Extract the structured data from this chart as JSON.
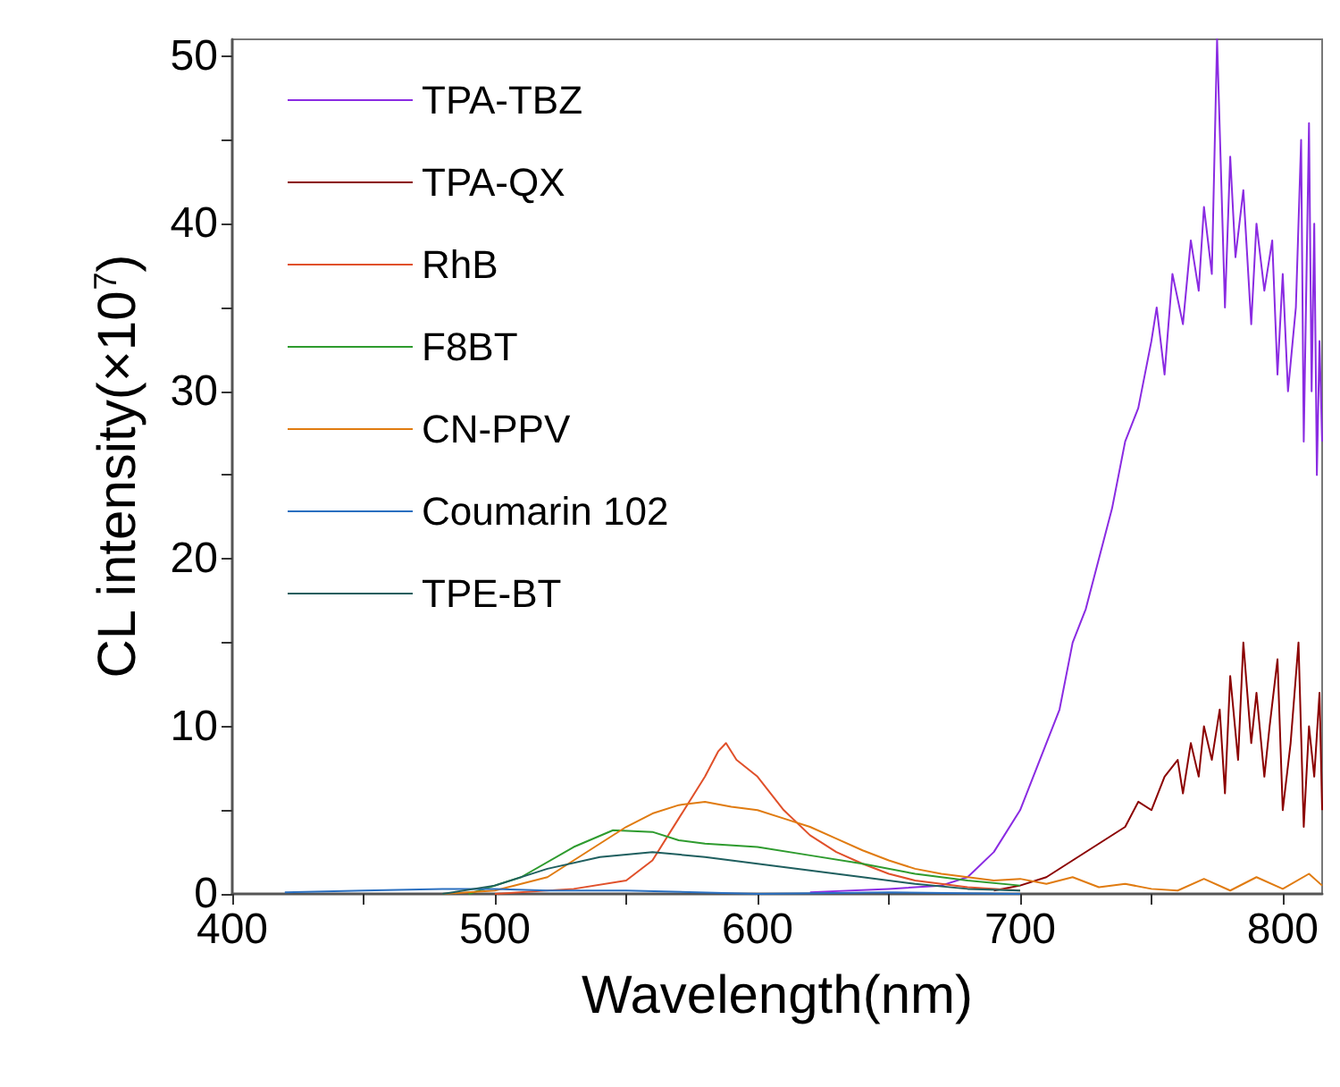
{
  "chart_data": {
    "type": "line",
    "xlabel": "Wavelength(nm)",
    "ylabel": "CL intensity(×10$^{7}$)",
    "xlim": [
      400,
      815
    ],
    "ylim": [
      0,
      51
    ],
    "xticks": [
      400,
      {
        "value": 450,
        "label": null
      },
      500,
      {
        "value": 550,
        "label": null
      },
      600,
      {
        "value": 650,
        "label": null
      },
      700,
      {
        "value": 750,
        "label": null
      },
      800
    ],
    "yticks": [
      0,
      {
        "value": 5,
        "label": null
      },
      10,
      {
        "value": 15,
        "label": null
      },
      20,
      {
        "value": 25,
        "label": null
      },
      30,
      {
        "value": 35,
        "label": null
      },
      40,
      {
        "value": 45,
        "label": null
      },
      50
    ],
    "grid": false,
    "legend": "top left",
    "marker": "none",
    "line_style": "solid",
    "series": [
      {
        "name": "TPA-TBZ",
        "color": "#8a2be2",
        "x": [
          620,
          650,
          670,
          680,
          690,
          700,
          705,
          710,
          715,
          720,
          725,
          730,
          735,
          740,
          745,
          750,
          752,
          755,
          758,
          762,
          765,
          768,
          770,
          773,
          775,
          778,
          780,
          782,
          785,
          788,
          790,
          793,
          796,
          798,
          800,
          802,
          805,
          807,
          808,
          810,
          811,
          812,
          813,
          814,
          815
        ],
        "values": [
          0.1,
          0.3,
          0.5,
          1,
          2.5,
          5,
          7,
          9,
          11,
          15,
          17,
          20,
          23,
          27,
          29,
          33,
          35,
          31,
          37,
          34,
          39,
          36,
          41,
          37,
          51,
          35,
          44,
          38,
          42,
          34,
          40,
          36,
          39,
          31,
          37,
          30,
          35,
          45,
          27,
          46,
          30,
          40,
          25,
          33,
          27
        ]
      },
      {
        "name": "TPA-QX",
        "color": "#8b0000",
        "x": [
          690,
          700,
          710,
          720,
          730,
          740,
          745,
          750,
          755,
          760,
          762,
          765,
          768,
          770,
          773,
          776,
          778,
          780,
          783,
          785,
          788,
          790,
          793,
          795,
          798,
          800,
          803,
          806,
          808,
          810,
          812,
          814,
          815
        ],
        "values": [
          0.2,
          0.5,
          1,
          2,
          3,
          4,
          5.5,
          5,
          7,
          8,
          6,
          9,
          7,
          10,
          8,
          11,
          6,
          13,
          8,
          15,
          9,
          12,
          7,
          10,
          14,
          5,
          9,
          15,
          4,
          10,
          7,
          12,
          5
        ]
      },
      {
        "name": "RhB",
        "color": "#e0502a",
        "x": [
          500,
          530,
          550,
          560,
          570,
          580,
          585,
          588,
          592,
          600,
          610,
          620,
          630,
          640,
          650,
          660,
          680,
          700
        ],
        "values": [
          0,
          0.3,
          0.8,
          2,
          4.5,
          7,
          8.5,
          9,
          8,
          7,
          5,
          3.5,
          2.5,
          1.8,
          1.2,
          0.8,
          0.4,
          0.2
        ]
      },
      {
        "name": "F8BT",
        "color": "#2e9b2e",
        "x": [
          490,
          510,
          530,
          545,
          560,
          570,
          580,
          600,
          620,
          640,
          660,
          680,
          700
        ],
        "values": [
          0,
          1,
          2.8,
          3.8,
          3.7,
          3.2,
          3,
          2.8,
          2.3,
          1.8,
          1.2,
          0.8,
          0.5
        ]
      },
      {
        "name": "CN-PPV",
        "color": "#e07b10",
        "x": [
          480,
          500,
          520,
          540,
          550,
          560,
          570,
          580,
          590,
          600,
          610,
          620,
          630,
          640,
          650,
          660,
          670,
          680,
          690,
          700,
          710,
          720,
          730,
          740,
          750,
          760,
          770,
          780,
          790,
          800,
          810,
          815
        ],
        "values": [
          0,
          0.2,
          1,
          3,
          4,
          4.8,
          5.3,
          5.5,
          5.2,
          5,
          4.5,
          4,
          3.3,
          2.6,
          2,
          1.5,
          1.2,
          1,
          0.8,
          0.9,
          0.6,
          1,
          0.4,
          0.6,
          0.3,
          0.2,
          0.9,
          0.2,
          1,
          0.3,
          1.2,
          0.5
        ]
      },
      {
        "name": "Coumarin 102",
        "color": "#2a6fc0",
        "x": [
          420,
          450,
          480,
          500,
          520,
          550,
          600,
          650,
          700
        ],
        "values": [
          0.1,
          0.2,
          0.3,
          0.3,
          0.2,
          0.2,
          0,
          0.1,
          0
        ]
      },
      {
        "name": "TPE-BT",
        "color": "#1f5f5f",
        "x": [
          480,
          500,
          520,
          540,
          560,
          580,
          600,
          620,
          640,
          660,
          680,
          700
        ],
        "values": [
          0,
          0.5,
          1.5,
          2.2,
          2.5,
          2.2,
          1.8,
          1.4,
          1,
          0.6,
          0.3,
          0.2
        ]
      }
    ]
  }
}
